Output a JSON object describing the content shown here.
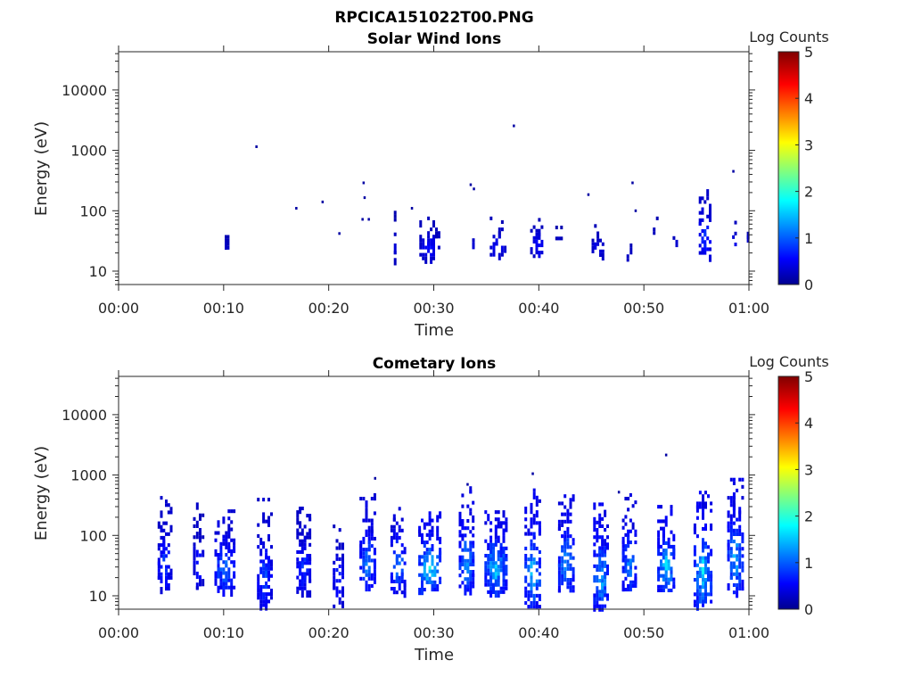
{
  "figure_title": "RPCICA151022T00.PNG",
  "chart_data": [
    {
      "type": "heatmap",
      "title": "Solar Wind Ions",
      "xlabel": "Time",
      "ylabel": "Energy (eV)",
      "x_unit": "minutes",
      "xlim": [
        0,
        60
      ],
      "x_ticks": [
        0,
        10,
        20,
        30,
        40,
        50,
        60
      ],
      "x_tick_labels": [
        "00:00",
        "00:10",
        "00:20",
        "00:30",
        "00:40",
        "00:50",
        "01:00"
      ],
      "yscale": "log",
      "ylim": [
        6,
        43000
      ],
      "y_ticks": [
        10,
        100,
        1000,
        10000
      ],
      "y_tick_labels": [
        "10",
        "100",
        "1000",
        "10000"
      ],
      "colorbar": {
        "label": "Log Counts",
        "range": [
          0,
          5
        ],
        "ticks": [
          "0",
          "1",
          "2",
          "3",
          "4",
          "5"
        ],
        "colormap": "jet"
      },
      "seed": 11,
      "bursts": [
        {
          "t": 10.2,
          "emin": 18,
          "emax": 60,
          "peak": 0.3,
          "density": 0.45,
          "width": 0.4
        },
        {
          "t": 26.2,
          "emin": 16,
          "emax": 115,
          "peak": 0.3,
          "density": 0.35,
          "width": 0.3
        },
        {
          "t": 29.5,
          "emin": 16,
          "emax": 80,
          "peak": 0.6,
          "density": 0.65,
          "width": 2.0
        },
        {
          "t": 33.5,
          "emin": 18,
          "emax": 70,
          "peak": 0.4,
          "density": 0.45,
          "width": 0.6
        },
        {
          "t": 36.0,
          "emin": 18,
          "emax": 80,
          "peak": 0.6,
          "density": 0.6,
          "width": 1.6
        },
        {
          "t": 39.8,
          "emin": 18,
          "emax": 100,
          "peak": 0.6,
          "density": 0.6,
          "width": 1.5
        },
        {
          "t": 41.8,
          "emin": 35,
          "emax": 65,
          "peak": 0.3,
          "density": 0.4,
          "width": 0.7
        },
        {
          "t": 45.5,
          "emin": 18,
          "emax": 60,
          "peak": 0.5,
          "density": 0.55,
          "width": 1.2
        },
        {
          "t": 48.5,
          "emin": 12,
          "emax": 50,
          "peak": 0.3,
          "density": 0.35,
          "width": 0.6
        },
        {
          "t": 51.0,
          "emin": 35,
          "emax": 80,
          "peak": 0.3,
          "density": 0.4,
          "width": 0.6
        },
        {
          "t": 53.0,
          "emin": 30,
          "emax": 50,
          "peak": 0.3,
          "density": 0.4,
          "width": 0.8
        },
        {
          "t": 55.7,
          "emin": 18,
          "emax": 300,
          "peak": 0.9,
          "density": 0.6,
          "width": 1.2
        },
        {
          "t": 58.5,
          "emin": 18,
          "emax": 90,
          "peak": 0.6,
          "density": 0.4,
          "width": 0.4
        },
        {
          "t": 59.8,
          "emin": 35,
          "emax": 45,
          "peak": 0.3,
          "density": 0.6,
          "width": 0.2
        }
      ],
      "points": [
        {
          "t": 13.1,
          "e": 1150,
          "v": 0.2
        },
        {
          "t": 16.9,
          "e": 110,
          "v": 0.2
        },
        {
          "t": 19.4,
          "e": 140,
          "v": 0.2
        },
        {
          "t": 21.0,
          "e": 42,
          "v": 0.2
        },
        {
          "t": 23.3,
          "e": 290,
          "v": 0.2
        },
        {
          "t": 23.4,
          "e": 165,
          "v": 0.2
        },
        {
          "t": 23.2,
          "e": 72,
          "v": 0.2
        },
        {
          "t": 23.8,
          "e": 72,
          "v": 0.2
        },
        {
          "t": 27.9,
          "e": 110,
          "v": 0.2
        },
        {
          "t": 33.5,
          "e": 270,
          "v": 0.2
        },
        {
          "t": 33.8,
          "e": 230,
          "v": 0.2
        },
        {
          "t": 37.6,
          "e": 2550,
          "v": 0.2
        },
        {
          "t": 44.7,
          "e": 185,
          "v": 0.2
        },
        {
          "t": 48.9,
          "e": 290,
          "v": 0.2
        },
        {
          "t": 49.2,
          "e": 100,
          "v": 0.2
        },
        {
          "t": 58.5,
          "e": 450,
          "v": 0.2
        }
      ]
    },
    {
      "type": "heatmap",
      "title": "Cometary Ions",
      "xlabel": "Time",
      "ylabel": "Energy (eV)",
      "x_unit": "minutes",
      "xlim": [
        0,
        60
      ],
      "x_ticks": [
        0,
        10,
        20,
        30,
        40,
        50,
        60
      ],
      "x_tick_labels": [
        "00:00",
        "00:10",
        "00:20",
        "00:30",
        "00:40",
        "00:50",
        "01:00"
      ],
      "yscale": "log",
      "ylim": [
        6,
        43000
      ],
      "y_ticks": [
        10,
        100,
        1000,
        10000
      ],
      "y_tick_labels": [
        "10",
        "100",
        "1000",
        "10000"
      ],
      "colorbar": {
        "label": "Log Counts",
        "range": [
          0,
          5
        ],
        "ticks": [
          "0",
          "1",
          "2",
          "3",
          "4",
          "5"
        ],
        "colormap": "jet"
      },
      "seed": 29,
      "bursts": [
        {
          "t": 4.3,
          "emin": 12,
          "emax": 450,
          "peak": 0.9,
          "density": 0.6,
          "width": 1.4
        },
        {
          "t": 7.5,
          "emin": 14,
          "emax": 350,
          "peak": 0.7,
          "density": 0.5,
          "width": 1.1
        },
        {
          "t": 10.0,
          "emin": 12,
          "emax": 270,
          "peak": 1.3,
          "density": 0.7,
          "width": 2.0
        },
        {
          "t": 13.8,
          "emin": 7,
          "emax": 420,
          "peak": 1.0,
          "density": 0.55,
          "width": 1.5
        },
        {
          "t": 17.5,
          "emin": 12,
          "emax": 300,
          "peak": 0.9,
          "density": 0.7,
          "width": 1.4
        },
        {
          "t": 20.8,
          "emin": 7,
          "emax": 200,
          "peak": 0.8,
          "density": 0.55,
          "width": 1.1
        },
        {
          "t": 23.6,
          "emin": 12,
          "emax": 500,
          "peak": 1.3,
          "density": 0.7,
          "width": 1.6
        },
        {
          "t": 26.5,
          "emin": 12,
          "emax": 450,
          "peak": 1.3,
          "density": 0.6,
          "width": 1.5
        },
        {
          "t": 29.5,
          "emin": 12,
          "emax": 250,
          "peak": 1.9,
          "density": 0.75,
          "width": 2.2
        },
        {
          "t": 33.0,
          "emin": 12,
          "emax": 650,
          "peak": 1.5,
          "density": 0.7,
          "width": 1.5
        },
        {
          "t": 35.8,
          "emin": 12,
          "emax": 300,
          "peak": 1.7,
          "density": 0.75,
          "width": 2.2
        },
        {
          "t": 39.3,
          "emin": 7,
          "emax": 600,
          "peak": 1.7,
          "density": 0.7,
          "width": 1.6
        },
        {
          "t": 42.5,
          "emin": 12,
          "emax": 550,
          "peak": 1.5,
          "density": 0.7,
          "width": 1.6
        },
        {
          "t": 45.8,
          "emin": 7,
          "emax": 350,
          "peak": 1.7,
          "density": 0.7,
          "width": 1.5
        },
        {
          "t": 48.5,
          "emin": 12,
          "emax": 500,
          "peak": 1.4,
          "density": 0.65,
          "width": 1.4
        },
        {
          "t": 52.0,
          "emin": 12,
          "emax": 320,
          "peak": 1.7,
          "density": 0.7,
          "width": 1.7
        },
        {
          "t": 55.5,
          "emin": 7,
          "emax": 550,
          "peak": 1.8,
          "density": 0.7,
          "width": 1.8
        },
        {
          "t": 58.6,
          "emin": 12,
          "emax": 900,
          "peak": 1.6,
          "density": 0.65,
          "width": 1.6
        }
      ],
      "points": [
        {
          "t": 24.4,
          "e": 880,
          "v": 0.2
        },
        {
          "t": 39.4,
          "e": 1050,
          "v": 0.2
        },
        {
          "t": 52.1,
          "e": 2150,
          "v": 0.2
        },
        {
          "t": 33.2,
          "e": 700,
          "v": 0.2
        },
        {
          "t": 47.6,
          "e": 520,
          "v": 0.2
        }
      ]
    }
  ]
}
